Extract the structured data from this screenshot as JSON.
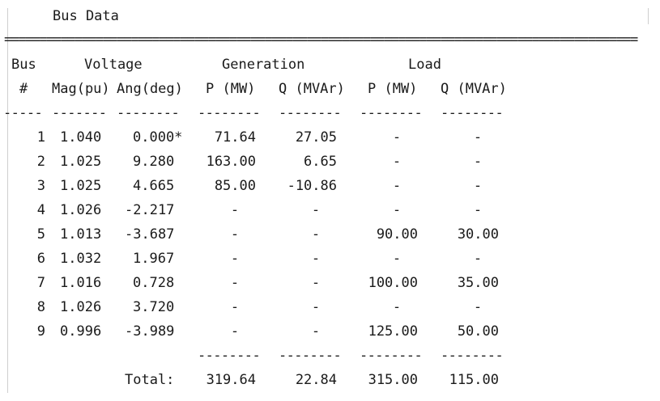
{
  "section_title": "Bus Data",
  "separator": "==========================================================================================",
  "header1": {
    "bus": "Bus",
    "voltage": "Voltage",
    "generation": "Generation",
    "load": "Load"
  },
  "header2": {
    "num": "#",
    "mag": "Mag(pu)",
    "ang": "Ang(deg)",
    "gen_p": "P (MW)",
    "gen_q": "Q (MVAr)",
    "load_p": "P (MW)",
    "load_q": "Q (MVAr)"
  },
  "underline": {
    "bus": "-----",
    "mag": "-------",
    "ang": "--------",
    "gen_p": "--------",
    "gen_q": "--------",
    "load_p": "--------",
    "load_q": "--------"
  },
  "rows": [
    {
      "bus": "1",
      "mag": "1.040",
      "ang": "0.000*",
      "gen_p": "71.64",
      "gen_q": "27.05",
      "load_p": "-",
      "load_q": "-"
    },
    {
      "bus": "2",
      "mag": "1.025",
      "ang": "9.280",
      "gen_p": "163.00",
      "gen_q": "6.65",
      "load_p": "-",
      "load_q": "-"
    },
    {
      "bus": "3",
      "mag": "1.025",
      "ang": "4.665",
      "gen_p": "85.00",
      "gen_q": "-10.86",
      "load_p": "-",
      "load_q": "-"
    },
    {
      "bus": "4",
      "mag": "1.026",
      "ang": "-2.217",
      "gen_p": "-",
      "gen_q": "-",
      "load_p": "-",
      "load_q": "-"
    },
    {
      "bus": "5",
      "mag": "1.013",
      "ang": "-3.687",
      "gen_p": "-",
      "gen_q": "-",
      "load_p": "90.00",
      "load_q": "30.00"
    },
    {
      "bus": "6",
      "mag": "1.032",
      "ang": "1.967",
      "gen_p": "-",
      "gen_q": "-",
      "load_p": "-",
      "load_q": "-"
    },
    {
      "bus": "7",
      "mag": "1.016",
      "ang": "0.728",
      "gen_p": "-",
      "gen_q": "-",
      "load_p": "100.00",
      "load_q": "35.00"
    },
    {
      "bus": "8",
      "mag": "1.026",
      "ang": "3.720",
      "gen_p": "-",
      "gen_q": "-",
      "load_p": "-",
      "load_q": "-"
    },
    {
      "bus": "9",
      "mag": "0.996",
      "ang": "-3.989",
      "gen_p": "-",
      "gen_q": "-",
      "load_p": "125.00",
      "load_q": "50.00"
    }
  ],
  "total_underline": {
    "gen_p": "--------",
    "gen_q": "--------",
    "load_p": "--------",
    "load_q": "--------"
  },
  "totals": {
    "label": "Total:",
    "gen_p": "319.64",
    "gen_q": "22.84",
    "load_p": "315.00",
    "load_q": "115.00"
  }
}
